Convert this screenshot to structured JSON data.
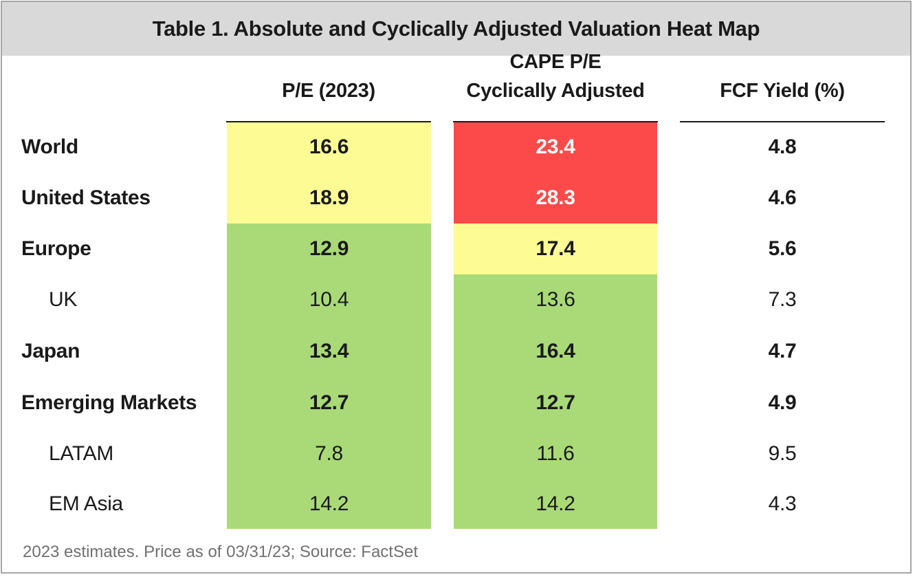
{
  "title": "Table 1. Absolute and Cyclically Adjusted Valuation Heat Map",
  "headers": {
    "pe": "P/E (2023)",
    "cape_line1": "CAPE P/E",
    "cape_line2": "Cyclically Adjusted",
    "fcf": "FCF Yield (%)"
  },
  "colors": {
    "yellow": "#fdfb93",
    "red": "#fc4a4a",
    "green": "#a9da77",
    "header_bg": "#d9d9d9"
  },
  "chart_data": {
    "type": "table",
    "title": "Table 1. Absolute and Cyclically Adjusted Valuation Heat Map",
    "columns": [
      "P/E (2023)",
      "CAPE P/E Cyclically Adjusted",
      "FCF Yield (%)"
    ],
    "rows": [
      {
        "label": "World",
        "bold": true,
        "pe": "16.6",
        "cape": "23.4",
        "fcf": "4.8",
        "pe_color": "yellow",
        "cape_color": "red"
      },
      {
        "label": "United States",
        "bold": true,
        "pe": "18.9",
        "cape": "28.3",
        "fcf": "4.6",
        "pe_color": "yellow",
        "cape_color": "red"
      },
      {
        "label": "Europe",
        "bold": true,
        "pe": "12.9",
        "cape": "17.4",
        "fcf": "5.6",
        "pe_color": "green",
        "cape_color": "yellow"
      },
      {
        "label": "UK",
        "bold": false,
        "pe": "10.4",
        "cape": "13.6",
        "fcf": "7.3",
        "pe_color": "green",
        "cape_color": "green"
      },
      {
        "label": "Japan",
        "bold": true,
        "pe": "13.4",
        "cape": "16.4",
        "fcf": "4.7",
        "pe_color": "green",
        "cape_color": "green"
      },
      {
        "label": "Emerging Markets",
        "bold": true,
        "pe": "12.7",
        "cape": "12.7",
        "fcf": "4.9",
        "pe_color": "green",
        "cape_color": "green"
      },
      {
        "label": "LATAM",
        "bold": false,
        "pe": "7.8",
        "cape": "11.6",
        "fcf": "9.5",
        "pe_color": "green",
        "cape_color": "green"
      },
      {
        "label": "EM Asia",
        "bold": false,
        "pe": "14.2",
        "cape": "14.2",
        "fcf": "4.3",
        "pe_color": "green",
        "cape_color": "green"
      }
    ]
  },
  "footnote": "2023 estimates. Price as of 03/31/23; Source: FactSet"
}
